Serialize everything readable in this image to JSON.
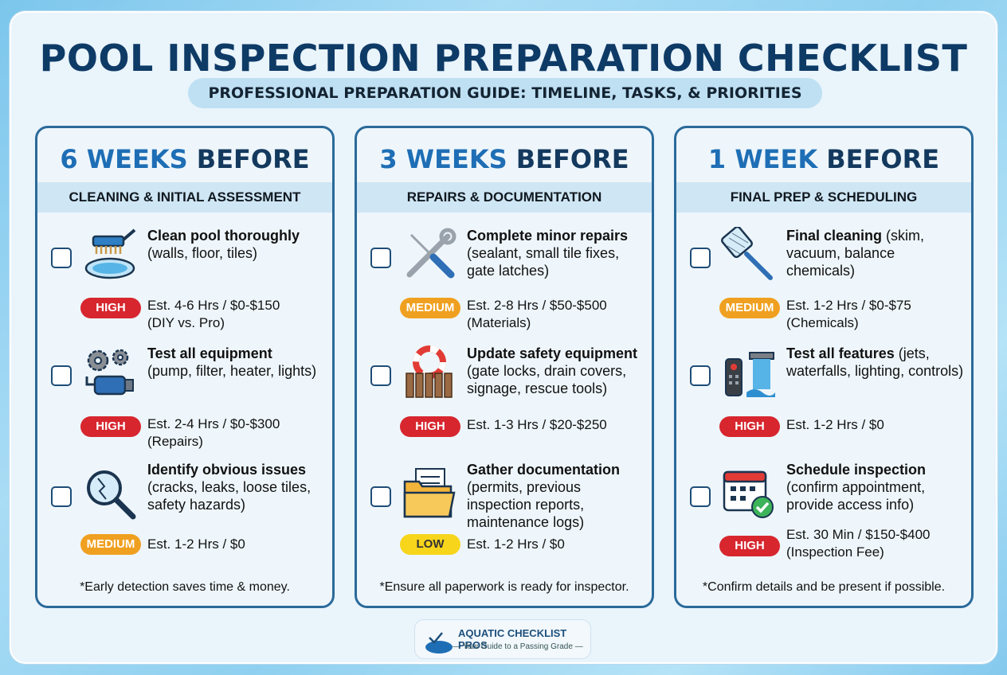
{
  "title": "POOL INSPECTION PREPARATION CHECKLIST",
  "subtitle": "PROFESSIONAL PREPARATION GUIDE: TIMELINE, TASKS, & PRIORITIES",
  "columns": [
    {
      "heading_num": "6 WEEKS",
      "heading_rest": " BEFORE",
      "subheading": "CLEANING & INITIAL ASSESSMENT",
      "tasks": [
        {
          "title": "Clean pool thoroughly",
          "detail": "(walls, floor, tiles)",
          "icon": "pool-brush-icon",
          "priority": "HIGH",
          "estimate": "Est. 4-6 Hrs / $0-$150",
          "estimate_note": "(DIY vs. Pro)"
        },
        {
          "title": "Test all equipment",
          "detail": "(pump, filter, heater, lights)",
          "icon": "gears-pump-icon",
          "priority": "HIGH",
          "estimate": "Est. 2-4 Hrs / $0-$300",
          "estimate_note": "(Repairs)"
        },
        {
          "title": "Identify obvious issues",
          "detail": "(cracks, leaks, loose tiles, safety hazards)",
          "icon": "magnifier-crack-icon",
          "priority": "MEDIUM",
          "estimate": "Est. 1-2 Hrs / $0",
          "estimate_note": ""
        }
      ],
      "note": "*Early detection saves time & money."
    },
    {
      "heading_num": "3 WEEKS",
      "heading_rest": " BEFORE",
      "subheading": "REPAIRS & DOCUMENTATION",
      "tasks": [
        {
          "title": "Complete minor repairs",
          "detail": "(sealant, small tile fixes, gate latches)",
          "icon": "wrench-screwdriver-icon",
          "priority": "MEDIUM",
          "estimate": "Est. 2-8 Hrs / $50-$500",
          "estimate_note": "(Materials)"
        },
        {
          "title": "Update safety equipment",
          "detail": "(gate locks, drain covers, signage, rescue tools)",
          "icon": "lifebuoy-fence-icon",
          "priority": "HIGH",
          "estimate": "Est. 1-3 Hrs / $20-$250",
          "estimate_note": ""
        },
        {
          "title": "Gather documentation",
          "detail": "(permits, previous inspection reports, maintenance logs)",
          "icon": "folder-documents-icon",
          "priority": "LOW",
          "estimate": "Est. 1-2 Hrs / $0",
          "estimate_note": ""
        }
      ],
      "note": "*Ensure all paperwork is ready for inspector."
    },
    {
      "heading_num": "1 WEEK",
      "heading_rest": " BEFORE",
      "subheading": "FINAL PREP & SCHEDULING",
      "tasks": [
        {
          "title": "Final cleaning",
          "detail": " (skim, vacuum, balance chemicals)",
          "icon": "skimmer-net-icon",
          "priority": "MEDIUM",
          "estimate": "Est. 1-2 Hrs / $0-$75",
          "estimate_note": "(Chemicals)"
        },
        {
          "title": "Test all features",
          "detail": " (jets, waterfalls, lighting, controls)",
          "icon": "remote-waterfall-icon",
          "priority": "HIGH",
          "estimate": "Est. 1-2 Hrs / $0",
          "estimate_note": ""
        },
        {
          "title": "Schedule inspection",
          "detail": "(confirm appointment, provide access info)",
          "icon": "calendar-check-icon",
          "priority": "HIGH",
          "estimate": "Est. 30 Min / $150-$400",
          "estimate_note": "(Inspection Fee)"
        }
      ],
      "note": "*Confirm details and be present if possible."
    }
  ],
  "logo": {
    "name": "AQUATIC CHECKLIST PROS",
    "tagline": "— Your Guide to a Passing Grade —"
  },
  "colors": {
    "navy": "#0e3a66",
    "accent": "#1e6eb5",
    "high": "#d7262e",
    "medium": "#f0a020",
    "low": "#f7d51a"
  }
}
